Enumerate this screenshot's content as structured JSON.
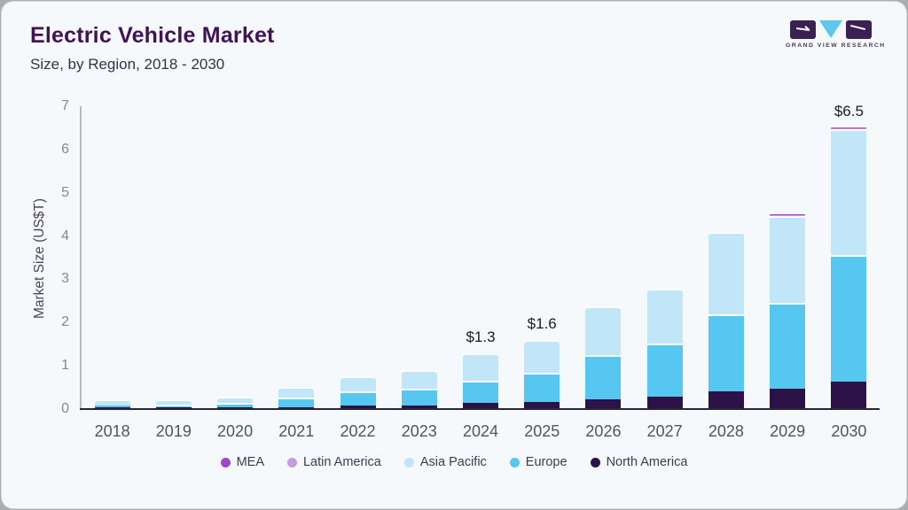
{
  "header": {
    "title": "Electric Vehicle Market",
    "subtitle": "Size, by Region, 2018 - 2030"
  },
  "logo": {
    "text": "GRAND VIEW RESEARCH",
    "square_color": "#3a2053",
    "triangle_color": "#5ec7ec"
  },
  "chart_data": {
    "type": "bar",
    "stacked": true,
    "title": "Electric Vehicle Market",
    "subtitle": "Size, by Region, 2018 - 2030",
    "xlabel": "",
    "ylabel": "Market Size (US$T)",
    "ylim": [
      0,
      7
    ],
    "yticks": [
      0,
      1,
      2,
      3,
      4,
      5,
      6,
      7
    ],
    "grid": false,
    "categories": [
      "2018",
      "2019",
      "2020",
      "2021",
      "2022",
      "2023",
      "2024",
      "2025",
      "2026",
      "2027",
      "2028",
      "2029",
      "2030"
    ],
    "series": [
      {
        "name": "North America",
        "color": "#2c1247",
        "values": [
          0.04,
          0.04,
          0.04,
          0.05,
          0.09,
          0.09,
          0.14,
          0.16,
          0.23,
          0.29,
          0.4,
          0.47,
          0.63
        ]
      },
      {
        "name": "Europe",
        "color": "#56c7f0",
        "values": [
          0.05,
          0.07,
          0.1,
          0.21,
          0.32,
          0.39,
          0.51,
          0.68,
          1.02,
          1.22,
          1.8,
          1.98,
          2.93
        ]
      },
      {
        "name": "Asia Pacific",
        "color": "#c1e6f8",
        "values": [
          0.14,
          0.12,
          0.15,
          0.26,
          0.34,
          0.42,
          0.65,
          0.76,
          1.12,
          1.27,
          1.89,
          2.01,
          2.9
        ]
      },
      {
        "name": "Latin America",
        "color": "#c99ae0",
        "values": [
          0,
          0,
          0,
          0,
          0,
          0,
          0,
          0,
          0,
          0,
          0,
          0.02,
          0.02
        ]
      },
      {
        "name": "MEA",
        "color": "#a244cb",
        "values": [
          0,
          0,
          0,
          0,
          0,
          0,
          0,
          0,
          0,
          0,
          0,
          0.02,
          0.02
        ]
      }
    ],
    "totals": [
      0.23,
      0.23,
      0.29,
      0.52,
      0.75,
      0.9,
      1.3,
      1.6,
      2.37,
      2.78,
      4.09,
      4.5,
      6.5
    ],
    "annotations": [
      {
        "category": "2024",
        "label": "$1.3"
      },
      {
        "category": "2025",
        "label": "$1.6"
      },
      {
        "category": "2030",
        "label": "$6.5"
      }
    ],
    "legend": {
      "position": "bottom",
      "items": [
        {
          "label": "MEA",
          "color": "#a244cb"
        },
        {
          "label": "Latin America",
          "color": "#c99ae0"
        },
        {
          "label": "Asia Pacific",
          "color": "#c1e6f8"
        },
        {
          "label": "Europe",
          "color": "#56c7f0"
        },
        {
          "label": "North America",
          "color": "#2c1247"
        }
      ]
    }
  }
}
